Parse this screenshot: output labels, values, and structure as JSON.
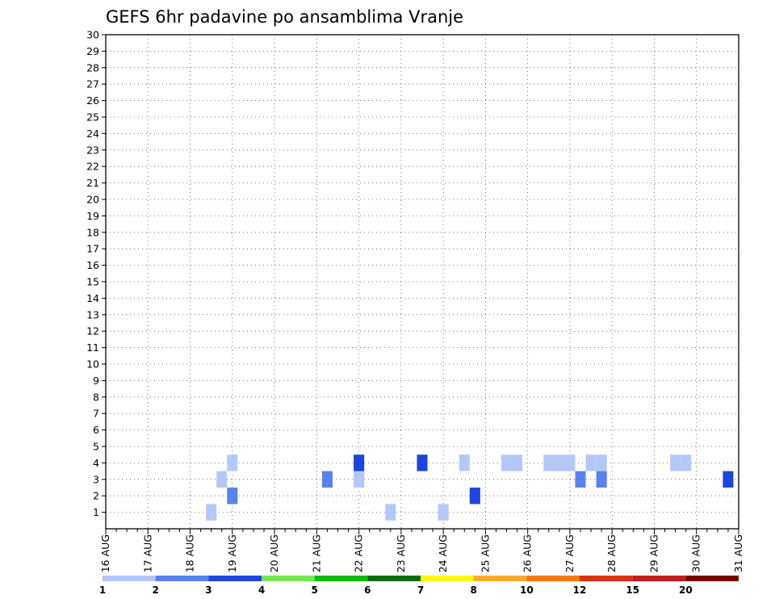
{
  "chart_data": {
    "type": "heatmap",
    "title": "GEFS 6hr padavine po ansamblima Vranje",
    "x_ticks": [
      "16 AUG",
      "17 AUG",
      "18 AUG",
      "19 AUG",
      "20 AUG",
      "21 AUG",
      "22 AUG",
      "23 AUG",
      "24 AUG",
      "25 AUG",
      "26 AUG",
      "27 AUG",
      "28 AUG",
      "29 AUG",
      "30 AUG",
      "31 AUG"
    ],
    "y_ticks": [
      "1",
      "2",
      "3",
      "4",
      "5",
      "6",
      "7",
      "8",
      "9",
      "10",
      "11",
      "12",
      "13",
      "14",
      "15",
      "16",
      "17",
      "18",
      "19",
      "20",
      "21",
      "22",
      "23",
      "24",
      "25",
      "26",
      "27",
      "28",
      "29",
      "30"
    ],
    "xlim": [
      "16 AUG 00Z",
      "31 AUG 00Z"
    ],
    "ylim": [
      0,
      30
    ],
    "grid": true,
    "colorbar": {
      "levels": [
        "1",
        "2",
        "3",
        "4",
        "5",
        "6",
        "7",
        "8",
        "10",
        "12",
        "15",
        "20"
      ],
      "colors": [
        "#b4c8f8",
        "#5a82ee",
        "#1e46dc",
        "#78e65a",
        "#14b914",
        "#0a6e0a",
        "#fafa00",
        "#faaa32",
        "#f5780a",
        "#dc3214",
        "#c31e1e",
        "#780000"
      ]
    },
    "x_step_hours": 6,
    "cells": [
      [
        1,
        10,
        1
      ],
      [
        1,
        27,
        1
      ],
      [
        1,
        32,
        1
      ],
      [
        2,
        12,
        2
      ],
      [
        2,
        35,
        3
      ],
      [
        3,
        11,
        1
      ],
      [
        3,
        21,
        2
      ],
      [
        3,
        24,
        1
      ],
      [
        3,
        45,
        2
      ],
      [
        3,
        47,
        2
      ],
      [
        3,
        59,
        3
      ],
      [
        4,
        12,
        1
      ],
      [
        4,
        24,
        3
      ],
      [
        4,
        30,
        3
      ],
      [
        4,
        34,
        1
      ],
      [
        4,
        38,
        1
      ],
      [
        4,
        39,
        1
      ],
      [
        4,
        42,
        1
      ],
      [
        4,
        43,
        1
      ],
      [
        4,
        44,
        1
      ],
      [
        4,
        46,
        1
      ],
      [
        4,
        47,
        1
      ],
      [
        4,
        54,
        1
      ],
      [
        4,
        55,
        1
      ],
      [
        4,
        62,
        2
      ],
      [
        4,
        63,
        3
      ],
      [
        4,
        74,
        1
      ],
      [
        4,
        75,
        1
      ],
      [
        4,
        80,
        1
      ],
      [
        4,
        81,
        1
      ],
      [
        4,
        82,
        1
      ],
      [
        4,
        84,
        1
      ],
      [
        4,
        88,
        1
      ],
      [
        4,
        89,
        1
      ],
      [
        4,
        98,
        1
      ],
      [
        4,
        101,
        1
      ],
      [
        4,
        102,
        1
      ],
      [
        4,
        103,
        1
      ],
      [
        4,
        108,
        1
      ],
      [
        4,
        109,
        1
      ],
      [
        4,
        110,
        1
      ],
      [
        4,
        111,
        1
      ],
      [
        4,
        112,
        1
      ],
      [
        4,
        116,
        1
      ],
      [
        4,
        117,
        1
      ],
      [
        4,
        118,
        1
      ],
      [
        4,
        119,
        1
      ],
      [
        4,
        120,
        1
      ],
      [
        4,
        126,
        1
      ],
      [
        4,
        127,
        1
      ],
      [
        4,
        128,
        1
      ],
      [
        4,
        129,
        1
      ],
      [
        4,
        130,
        1
      ],
      [
        4,
        133,
        3
      ],
      [
        4,
        134,
        3
      ],
      [
        4,
        135,
        3
      ],
      [
        4,
        136,
        1
      ],
      [
        4,
        137,
        1
      ],
      [
        4,
        138,
        1
      ],
      [
        4,
        144,
        2
      ],
      [
        4,
        145,
        2
      ],
      [
        4,
        146,
        2
      ],
      [
        4,
        147,
        1
      ],
      [
        4,
        148,
        1
      ],
      [
        4,
        149,
        1
      ],
      [
        4,
        150,
        2
      ],
      [
        4,
        151,
        2
      ],
      [
        4,
        152,
        1
      ],
      [
        4,
        158,
        1
      ],
      [
        4,
        159,
        1
      ],
      [
        4,
        160,
        1
      ],
      [
        4,
        161,
        2
      ],
      [
        4,
        162,
        2
      ],
      [
        4,
        163,
        1
      ],
      [
        4,
        166,
        1
      ],
      [
        4,
        167,
        1
      ],
      [
        4,
        168,
        2
      ],
      [
        4,
        169,
        2
      ],
      [
        4,
        176,
        1
      ],
      [
        4,
        177,
        1
      ],
      [
        4,
        178,
        2
      ],
      [
        4,
        179,
        2
      ],
      [
        4,
        180,
        1
      ],
      [
        4,
        186,
        1
      ],
      [
        4,
        187,
        1
      ],
      [
        4,
        188,
        1
      ],
      [
        4,
        191,
        1
      ],
      [
        4,
        194,
        1
      ],
      [
        4,
        199,
        1
      ],
      [
        4,
        200,
        1
      ],
      [
        4,
        201,
        1
      ],
      [
        4,
        202,
        1
      ],
      [
        4,
        203,
        1
      ],
      [
        4,
        204,
        2
      ],
      [
        4,
        205,
        2
      ],
      [
        4,
        206,
        3
      ],
      [
        4,
        208,
        1
      ],
      [
        4,
        212,
        1
      ],
      [
        4,
        213,
        1
      ],
      [
        4,
        214,
        1
      ],
      [
        4,
        215,
        1
      ],
      [
        4,
        217,
        1
      ],
      [
        4,
        218,
        1
      ],
      [
        4,
        219,
        1
      ],
      [
        4,
        220,
        1
      ],
      [
        4,
        221,
        1
      ],
      [
        4,
        223,
        1
      ],
      [
        4,
        230,
        1
      ],
      [
        4,
        231,
        1
      ],
      [
        4,
        232,
        1
      ],
      [
        4,
        233,
        1
      ],
      [
        4,
        234,
        1
      ],
      [
        4,
        235,
        1
      ],
      [
        4,
        236,
        1
      ],
      [
        4,
        237,
        1
      ],
      [
        4,
        238,
        1
      ],
      [
        4,
        239,
        1
      ],
      [
        4,
        240,
        1
      ],
      [
        4,
        241,
        1
      ],
      [
        4,
        242,
        1
      ],
      [
        4,
        243,
        1
      ],
      [
        4,
        244,
        1
      ],
      [
        4,
        245,
        1
      ],
      [
        4,
        246,
        1
      ],
      [
        4,
        247,
        1
      ],
      [
        4,
        249,
        1
      ],
      [
        4,
        250,
        1
      ],
      [
        4,
        251,
        1
      ],
      [
        4,
        252,
        1
      ],
      [
        4,
        256,
        1
      ],
      [
        4,
        257,
        1
      ],
      [
        4,
        258,
        1
      ],
      [
        4,
        259,
        1
      ],
      [
        4,
        264,
        1
      ],
      [
        4,
        265,
        1
      ],
      [
        4,
        266,
        1
      ],
      [
        4,
        267,
        1
      ],
      [
        4,
        268,
        1
      ],
      [
        4,
        269,
        1
      ],
      [
        4,
        270,
        1
      ],
      [
        4,
        272,
        1
      ],
      [
        4,
        273,
        1
      ],
      [
        4,
        274,
        1
      ],
      [
        4,
        275,
        1
      ],
      [
        4,
        276,
        1
      ],
      [
        4,
        277,
        1
      ],
      [
        4,
        278,
        1
      ],
      [
        4,
        279,
        1
      ],
      [
        4,
        280,
        1
      ],
      [
        4,
        281,
        1
      ],
      [
        4,
        282,
        1
      ],
      [
        4,
        283,
        1
      ],
      [
        4,
        284,
        1
      ],
      [
        4,
        285,
        1
      ],
      [
        4,
        286,
        1
      ],
      [
        4,
        287,
        1
      ],
      [
        4,
        288,
        1
      ],
      [
        4,
        289,
        1
      ],
      [
        4,
        290,
        1
      ],
      [
        4,
        291,
        1
      ],
      [
        4,
        292,
        1
      ],
      [
        4,
        293,
        1
      ],
      [
        4,
        294,
        1
      ],
      [
        4,
        295,
        1
      ],
      [
        4,
        296,
        1
      ],
      [
        4,
        297,
        1
      ],
      [
        4,
        298,
        1
      ],
      [
        4,
        299,
        1
      ],
      [
        4,
        300,
        1
      ]
    ]
  }
}
